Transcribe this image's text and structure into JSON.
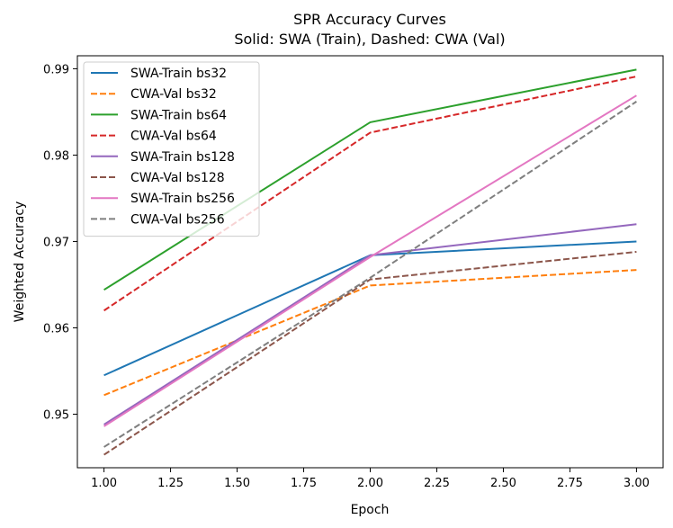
{
  "chart_data": {
    "type": "line",
    "title": "SPR Accuracy Curves",
    "subtitle": "Solid: SWA (Train), Dashed: CWA (Val)",
    "xlabel": "Epoch",
    "ylabel": "Weighted Accuracy",
    "xlim": [
      0.9,
      3.1
    ],
    "ylim": [
      0.9438,
      0.9915
    ],
    "xticks": [
      1.0,
      1.25,
      1.5,
      1.75,
      2.0,
      2.25,
      2.5,
      2.75,
      3.0
    ],
    "xtick_labels": [
      "1.00",
      "1.25",
      "1.50",
      "1.75",
      "2.00",
      "2.25",
      "2.50",
      "2.75",
      "3.00"
    ],
    "yticks": [
      0.95,
      0.96,
      0.97,
      0.98,
      0.99
    ],
    "ytick_labels": [
      "0.95",
      "0.96",
      "0.97",
      "0.98",
      "0.99"
    ],
    "grid": false,
    "legend_position": "top-left",
    "x": [
      1,
      2,
      3
    ],
    "series": [
      {
        "name": "SWA-Train bs32",
        "values": [
          0.9545,
          0.9684,
          0.97
        ],
        "color": "#1f77b4",
        "style": "solid"
      },
      {
        "name": "CWA-Val bs32",
        "values": [
          0.9522,
          0.9649,
          0.9667
        ],
        "color": "#ff7f0e",
        "style": "dashed"
      },
      {
        "name": "SWA-Train bs64",
        "values": [
          0.9644,
          0.9838,
          0.9899
        ],
        "color": "#2ca02c",
        "style": "solid"
      },
      {
        "name": "CWA-Val bs64",
        "values": [
          0.962,
          0.9826,
          0.9891
        ],
        "color": "#d62728",
        "style": "dashed"
      },
      {
        "name": "SWA-Train bs128",
        "values": [
          0.9488,
          0.9684,
          0.972
        ],
        "color": "#9467bd",
        "style": "solid"
      },
      {
        "name": "CWA-Val bs128",
        "values": [
          0.9453,
          0.9656,
          0.9688
        ],
        "color": "#8c564b",
        "style": "dashed"
      },
      {
        "name": "SWA-Train bs256",
        "values": [
          0.9486,
          0.9682,
          0.9869
        ],
        "color": "#e377c2",
        "style": "solid"
      },
      {
        "name": "CWA-Val bs256",
        "values": [
          0.9462,
          0.9658,
          0.9862
        ],
        "color": "#7f7f7f",
        "style": "dashed"
      }
    ]
  }
}
